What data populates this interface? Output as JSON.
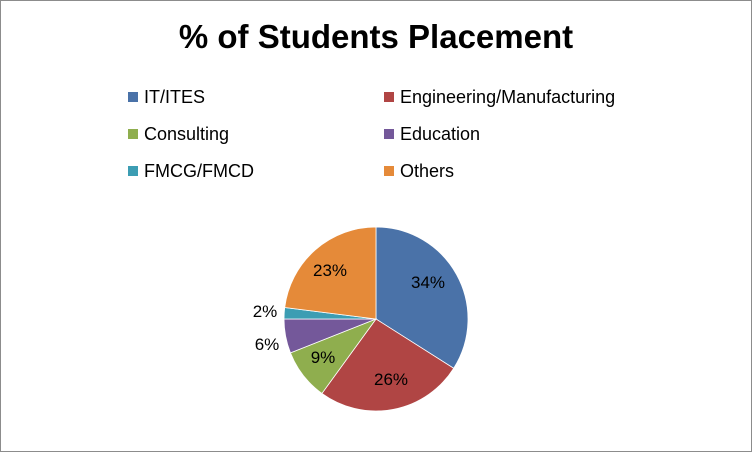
{
  "chart_data": {
    "type": "pie",
    "title": "% of Students Placement",
    "legend_position": "top",
    "categories": [
      "IT/ITES",
      "Engineering/Manufacturing",
      "Consulting",
      "Education",
      "FMCG/FMCD",
      "Others"
    ],
    "values": [
      34,
      26,
      9,
      6,
      2,
      23
    ],
    "labels": [
      "34%",
      "26%",
      "9%",
      "6%",
      "2%",
      "23%"
    ],
    "colors": [
      "#4a72a8",
      "#b04544",
      "#8fae4e",
      "#74589a",
      "#3c9db3",
      "#e58a39"
    ]
  }
}
